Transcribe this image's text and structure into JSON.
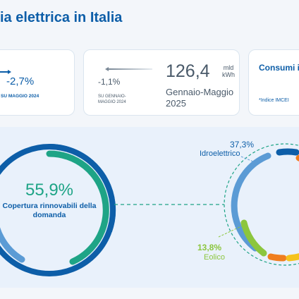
{
  "title": "ia elettrica in Italia",
  "card1": {
    "change": "-2,7%",
    "label": "SU MAGGIO 2024"
  },
  "card2": {
    "change": "-1,1%",
    "change_label": "SU GENNAIO-MAGGIO 2024",
    "value": "126,4",
    "unit": "mld kWh",
    "period": "Gennaio-Maggio 2025"
  },
  "card3": {
    "title": "Consumi industriali",
    "note": "*Indice IMCEI"
  },
  "renewables": {
    "coverage": "55,9%",
    "label": "Copertura rinnovabili della domanda"
  },
  "sources": [
    {
      "name": "Idroelettrico",
      "share": "37,3%"
    },
    {
      "name": "Eolico",
      "share": "13,8%"
    }
  ],
  "colors": {
    "primary": "#0d5ea8",
    "teal": "#1ea486",
    "hydro": "#5b9bd5",
    "wind": "#8cc63e",
    "orange": "#f07e1e",
    "yellow": "#f5c31c"
  }
}
